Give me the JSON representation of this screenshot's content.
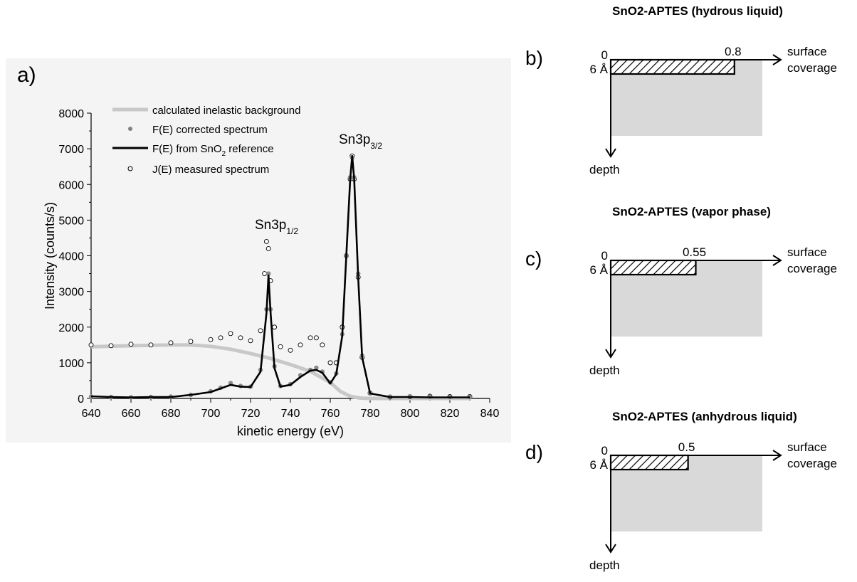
{
  "panel_a": {
    "letter": "a)",
    "legend": [
      {
        "label": "calculated inelastic background",
        "color": "#c8c8c8"
      },
      {
        "label": "F(E) corrected spectrum",
        "color": "#808080"
      },
      {
        "label_main": "F(E) from SnO",
        "label_sub": "2",
        "label_tail": " reference",
        "color": "#000000"
      },
      {
        "label": "J(E) measured spectrum",
        "color": "#000000"
      }
    ],
    "annotations": [
      {
        "main": "Sn3p",
        "sub": "1/2"
      },
      {
        "main": "Sn3p",
        "sub": "3/2"
      }
    ]
  },
  "panels": [
    {
      "letter": "b)",
      "title": "SnO2-APTES (hydrous liquid)",
      "coverage": 0.8,
      "coverage_label": "0.8",
      "zero_label": "0",
      "depth_label": "6 Å",
      "axis_x_line1": "surface",
      "axis_x_line2": "coverage",
      "axis_y_label": "depth"
    },
    {
      "letter": "c)",
      "title": "SnO2-APTES (vapor phase)",
      "coverage": 0.55,
      "coverage_label": "0.55",
      "zero_label": "0",
      "depth_label": "6 Å",
      "axis_x_line1": "surface",
      "axis_x_line2": "coverage",
      "axis_y_label": "depth"
    },
    {
      "letter": "d)",
      "title": "SnO2-APTES (anhydrous liquid)",
      "coverage": 0.5,
      "coverage_label": "0.5",
      "zero_label": "0",
      "depth_label": "6 Å",
      "axis_x_line1": "surface",
      "axis_x_line2": "coverage",
      "axis_y_label": "depth"
    }
  ],
  "chart_data": {
    "type": "line",
    "title": "",
    "xlabel": "kinetic energy (eV)",
    "ylabel": "Intensity (counts/s)",
    "xlim": [
      640,
      840
    ],
    "ylim": [
      0,
      8000
    ],
    "x_ticks": [
      640,
      660,
      680,
      700,
      720,
      740,
      760,
      780,
      800,
      820,
      840
    ],
    "y_ticks": [
      0,
      1000,
      2000,
      3000,
      4000,
      5000,
      6000,
      7000,
      8000
    ],
    "grid": false,
    "legend_position": "top-left",
    "series": [
      {
        "name": "calculated inelastic background",
        "style": "thick light gray line",
        "x": [
          640,
          660,
          680,
          690,
          700,
          710,
          720,
          730,
          740,
          750,
          760,
          765,
          770,
          775,
          780,
          800,
          830
        ],
        "y": [
          1450,
          1480,
          1500,
          1500,
          1460,
          1380,
          1260,
          1120,
          950,
          760,
          450,
          200,
          60,
          10,
          0,
          0,
          0
        ]
      },
      {
        "name": "F(E) corrected spectrum",
        "style": "gray dots",
        "x": [
          640,
          650,
          660,
          670,
          680,
          690,
          700,
          705,
          710,
          715,
          720,
          725,
          728,
          729,
          730,
          732,
          735,
          740,
          745,
          750,
          753,
          756,
          760,
          763,
          766,
          768,
          770,
          771,
          772,
          774,
          776,
          780,
          790,
          800,
          810,
          820,
          830
        ],
        "y": [
          50,
          40,
          30,
          40,
          50,
          100,
          200,
          300,
          430,
          350,
          330,
          800,
          2500,
          3500,
          2500,
          900,
          350,
          400,
          650,
          800,
          860,
          750,
          450,
          700,
          1800,
          4000,
          6200,
          6750,
          6200,
          3500,
          1200,
          150,
          50,
          60,
          50,
          40,
          40
        ]
      },
      {
        "name": "F(E) from SnO2 reference",
        "style": "black line",
        "x": [
          640,
          650,
          660,
          670,
          680,
          690,
          700,
          705,
          710,
          715,
          720,
          725,
          728,
          729,
          730,
          732,
          735,
          740,
          745,
          750,
          753,
          756,
          760,
          763,
          766,
          768,
          770,
          771,
          772,
          774,
          776,
          780,
          790,
          800,
          810,
          820,
          830
        ],
        "y": [
          60,
          40,
          30,
          40,
          40,
          100,
          180,
          280,
          380,
          330,
          320,
          750,
          2400,
          3450,
          2450,
          850,
          330,
          380,
          600,
          780,
          800,
          720,
          420,
          680,
          1750,
          3950,
          6150,
          6800,
          6150,
          3400,
          1150,
          140,
          40,
          40,
          30,
          30,
          30
        ]
      },
      {
        "name": "J(E) measured spectrum",
        "style": "open circles",
        "x": [
          640,
          650,
          660,
          670,
          680,
          690,
          700,
          705,
          710,
          715,
          720,
          725,
          727,
          728,
          729,
          730,
          732,
          735,
          740,
          745,
          750,
          753,
          756,
          760,
          763,
          766,
          768,
          770,
          771,
          772,
          774,
          776,
          780,
          790,
          800,
          810,
          820,
          830
        ],
        "y": [
          1500,
          1480,
          1520,
          1500,
          1560,
          1600,
          1650,
          1700,
          1820,
          1700,
          1620,
          1900,
          3500,
          4400,
          4200,
          3300,
          2000,
          1450,
          1350,
          1500,
          1700,
          1700,
          1500,
          1000,
          1000,
          2000,
          4000,
          6150,
          6800,
          6150,
          3400,
          1150,
          150,
          40,
          50,
          60,
          50,
          50
        ]
      }
    ]
  }
}
